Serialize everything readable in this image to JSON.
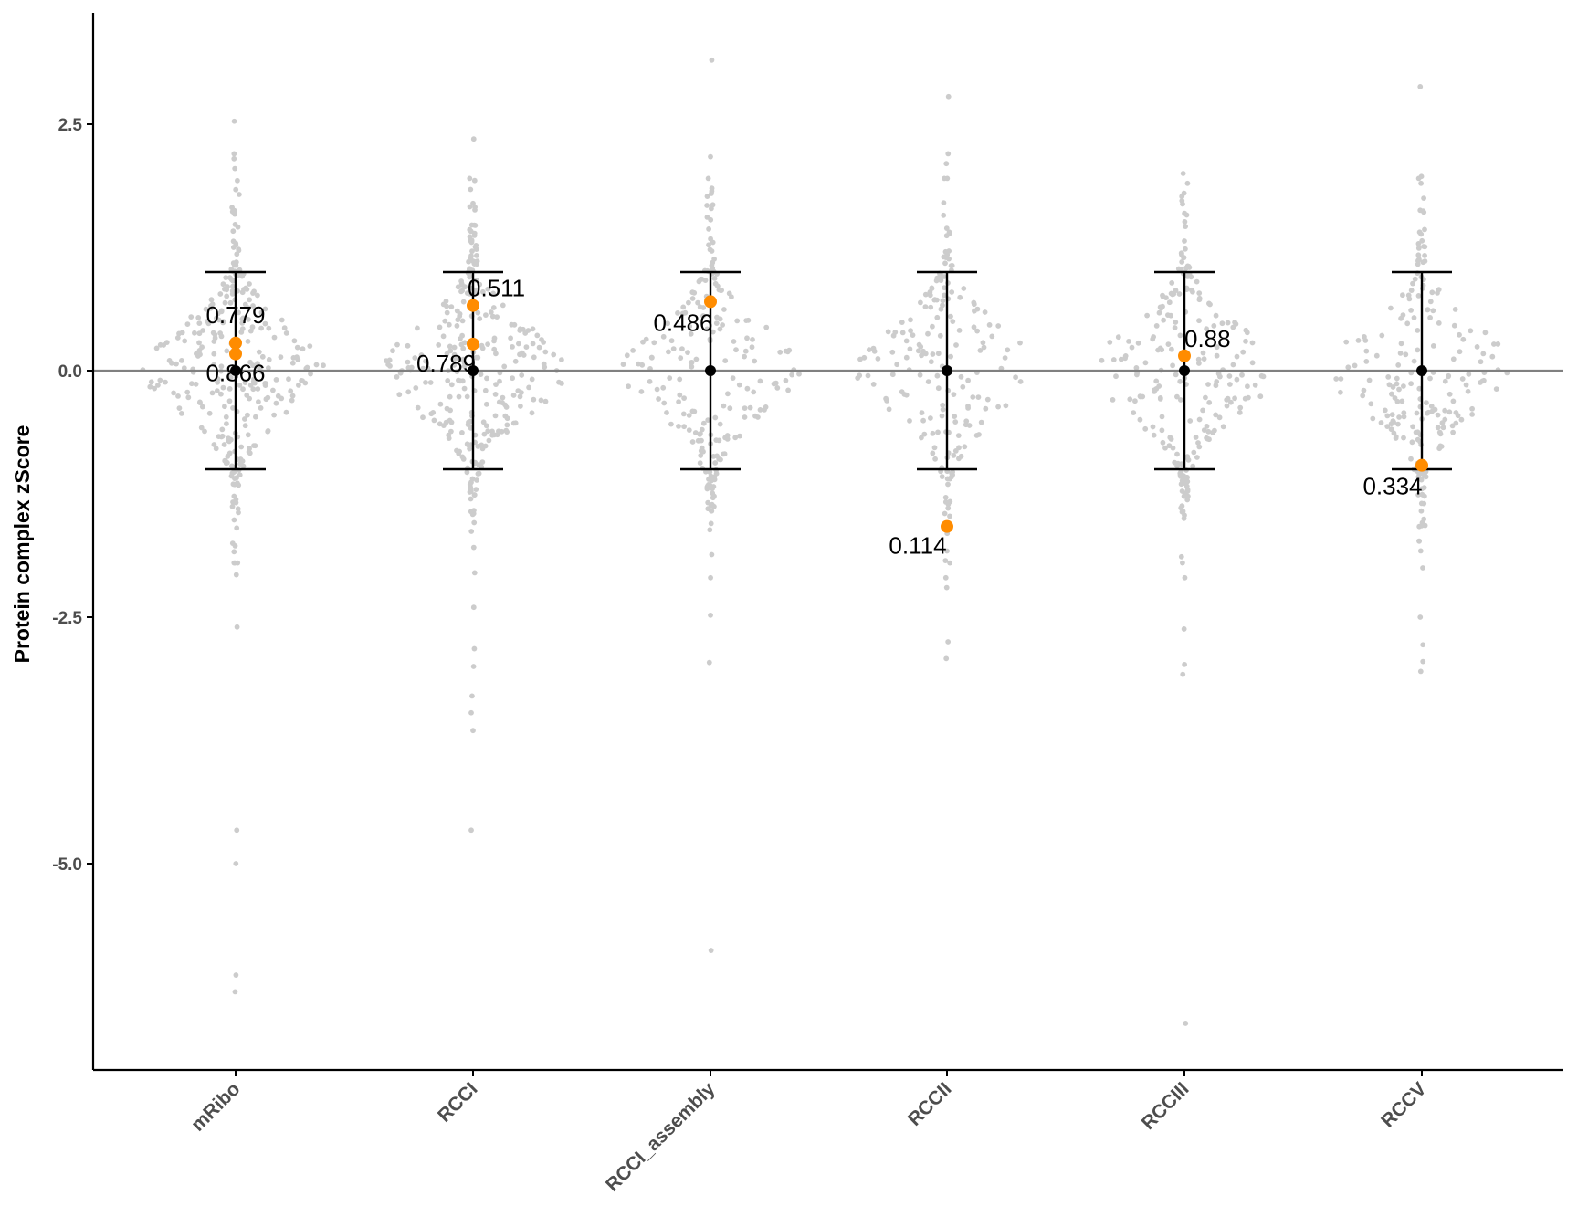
{
  "chart_data": {
    "type": "scatter",
    "subtype": "beeswarm with mean ± 1 SD error bars",
    "title": "",
    "xlabel": "",
    "ylabel": "Protein complex zScore",
    "ylim": [
      -7.0,
      3.6
    ],
    "yticks": [
      2.5,
      0.0,
      -2.5,
      -5.0
    ],
    "ytick_labels": [
      "2.5",
      "0.0",
      "-2.5",
      "-5.0"
    ],
    "reference_line_y": 0.0,
    "grid": false,
    "categories": [
      "mRibo",
      "RCCI",
      "RCCI_assembly",
      "RCCII",
      "RCCIII",
      "RCCV"
    ],
    "summary": [
      {
        "category": "mRibo",
        "mean": 0.0,
        "lower": -1.0,
        "upper": 1.0
      },
      {
        "category": "RCCI",
        "mean": 0.0,
        "lower": -1.0,
        "upper": 1.0
      },
      {
        "category": "RCCI_assembly",
        "mean": 0.0,
        "lower": -1.0,
        "upper": 1.0
      },
      {
        "category": "RCCII",
        "mean": 0.0,
        "lower": -1.0,
        "upper": 1.0
      },
      {
        "category": "RCCIII",
        "mean": 0.0,
        "lower": -1.0,
        "upper": 1.0
      },
      {
        "category": "RCCV",
        "mean": 0.0,
        "lower": -1.0,
        "upper": 1.0
      }
    ],
    "highlighted_points": [
      {
        "category": "mRibo",
        "y": 0.28,
        "label": "0.779"
      },
      {
        "category": "mRibo",
        "y": 0.17,
        "label": "0.866"
      },
      {
        "category": "RCCI",
        "y": 0.66,
        "label": "0.511"
      },
      {
        "category": "RCCI",
        "y": 0.27,
        "label": "0.789"
      },
      {
        "category": "RCCI_assembly",
        "y": 0.7,
        "label": "0.486"
      },
      {
        "category": "RCCII",
        "y": -1.58,
        "label": "0.114"
      },
      {
        "category": "RCCIII",
        "y": 0.15,
        "label": "0.88"
      },
      {
        "category": "RCCV",
        "y": -0.96,
        "label": "0.334"
      }
    ],
    "background_points": {
      "description": "grey swarm of per-sample zScores",
      "outliers": [
        {
          "category": "mRibo",
          "values": [
            2.53,
            2.2,
            2.15,
            2.05,
            -2.07,
            -2.6,
            -4.66,
            -5.0,
            -6.13,
            -6.3
          ]
        },
        {
          "category": "RCCI",
          "values": [
            2.35,
            -2.05,
            -2.4,
            -2.82,
            -3.0,
            -3.3,
            -3.47,
            -3.65,
            -4.66
          ]
        },
        {
          "category": "RCCI_assembly",
          "values": [
            3.15,
            2.17,
            1.85,
            -2.1,
            -2.48,
            -2.96,
            -5.88
          ]
        },
        {
          "category": "RCCII",
          "values": [
            2.78,
            2.2,
            2.1,
            1.95,
            -2.1,
            -2.2,
            -2.75,
            -2.92
          ]
        },
        {
          "category": "RCCIII",
          "values": [
            2.0,
            1.8,
            -2.1,
            -2.62,
            -2.98,
            -3.08,
            -6.62
          ]
        },
        {
          "category": "RCCV",
          "values": [
            2.88,
            1.97,
            1.9,
            -2.0,
            -2.5,
            -2.78,
            -2.95,
            -3.05
          ]
        }
      ]
    },
    "colors": {
      "background_points": "#cccccc",
      "highlight_points": "#ff8c00",
      "summary": "#000000",
      "reference_line": "#808080",
      "axis": "#000000",
      "tick_text": "#4d4d4d"
    }
  }
}
